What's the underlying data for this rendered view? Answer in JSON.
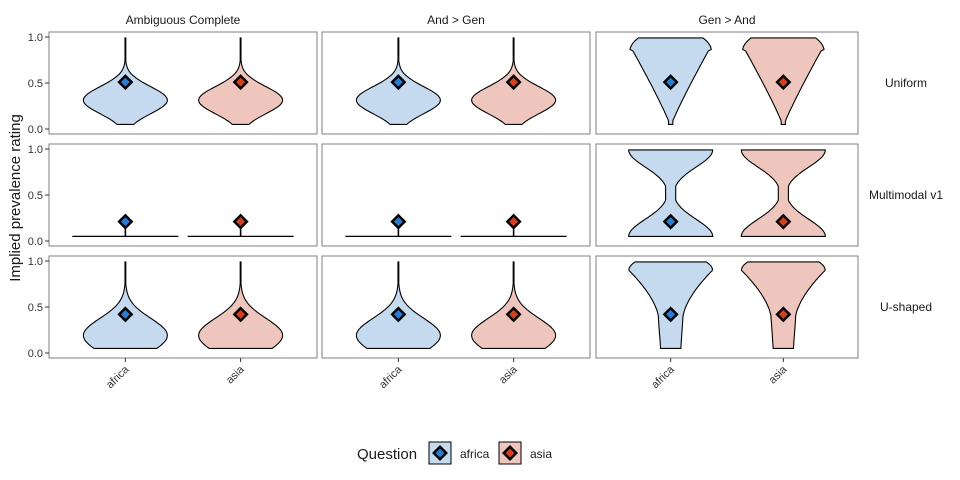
{
  "chart_data": {
    "type": "violin",
    "ylabel": "Implied prevalence rating",
    "xlabel": "",
    "ylim": [
      0,
      1
    ],
    "y_ticks": [
      0.0,
      0.5,
      1.0
    ],
    "y_tick_labels": [
      "0.0",
      "0.5",
      "1.0"
    ],
    "categories": [
      "africa",
      "asia"
    ],
    "facet_columns": [
      "Ambiguous Complete",
      "And > Gen",
      "Gen > And"
    ],
    "facet_rows": [
      "Uniform",
      "Multimodal v1",
      "U-shaped"
    ],
    "grid": false,
    "legend": {
      "title": "Question",
      "position": "bottom",
      "entries": [
        {
          "label": "africa",
          "fill": "#c5d9ef",
          "point": "#2b7bd0"
        },
        {
          "label": "asia",
          "fill": "#efc6bd",
          "point": "#d4401e"
        }
      ]
    },
    "colors": {
      "africa_fill": "#c5d9ef",
      "asia_fill": "#efc6bd",
      "africa_point": "#2b7bd0",
      "asia_point": "#d4401e",
      "outline": "#000000",
      "panel_border": "#7f7f7f"
    },
    "panels": [
      {
        "row": "Uniform",
        "col": "Ambiguous Complete",
        "shape": "peak_high",
        "range": [
          0.05,
          0.99
        ],
        "mean": 0.51
      },
      {
        "row": "Uniform",
        "col": "And > Gen",
        "shape": "peak_high",
        "range": [
          0.05,
          0.99
        ],
        "mean": 0.51
      },
      {
        "row": "Uniform",
        "col": "Gen > And",
        "shape": "funnel_top",
        "range": [
          0.05,
          0.99
        ],
        "mean": 0.51
      },
      {
        "row": "Multimodal v1",
        "col": "Ambiguous Complete",
        "shape": "flat_zero",
        "range": [
          0.05,
          0.05
        ],
        "mean": 0.21
      },
      {
        "row": "Multimodal v1",
        "col": "And > Gen",
        "shape": "flat_zero",
        "range": [
          0.05,
          0.05
        ],
        "mean": 0.21
      },
      {
        "row": "Multimodal v1",
        "col": "Gen > And",
        "shape": "hourglass",
        "range": [
          0.05,
          0.99
        ],
        "mean": 0.21
      },
      {
        "row": "U-shaped",
        "col": "Ambiguous Complete",
        "shape": "peak_low",
        "range": [
          0.05,
          0.99
        ],
        "mean": 0.42
      },
      {
        "row": "U-shaped",
        "col": "And > Gen",
        "shape": "peak_low",
        "range": [
          0.05,
          0.99
        ],
        "mean": 0.42
      },
      {
        "row": "U-shaped",
        "col": "Gen > And",
        "shape": "funnel_top_wide",
        "range": [
          0.05,
          0.99
        ],
        "mean": 0.42
      }
    ]
  }
}
